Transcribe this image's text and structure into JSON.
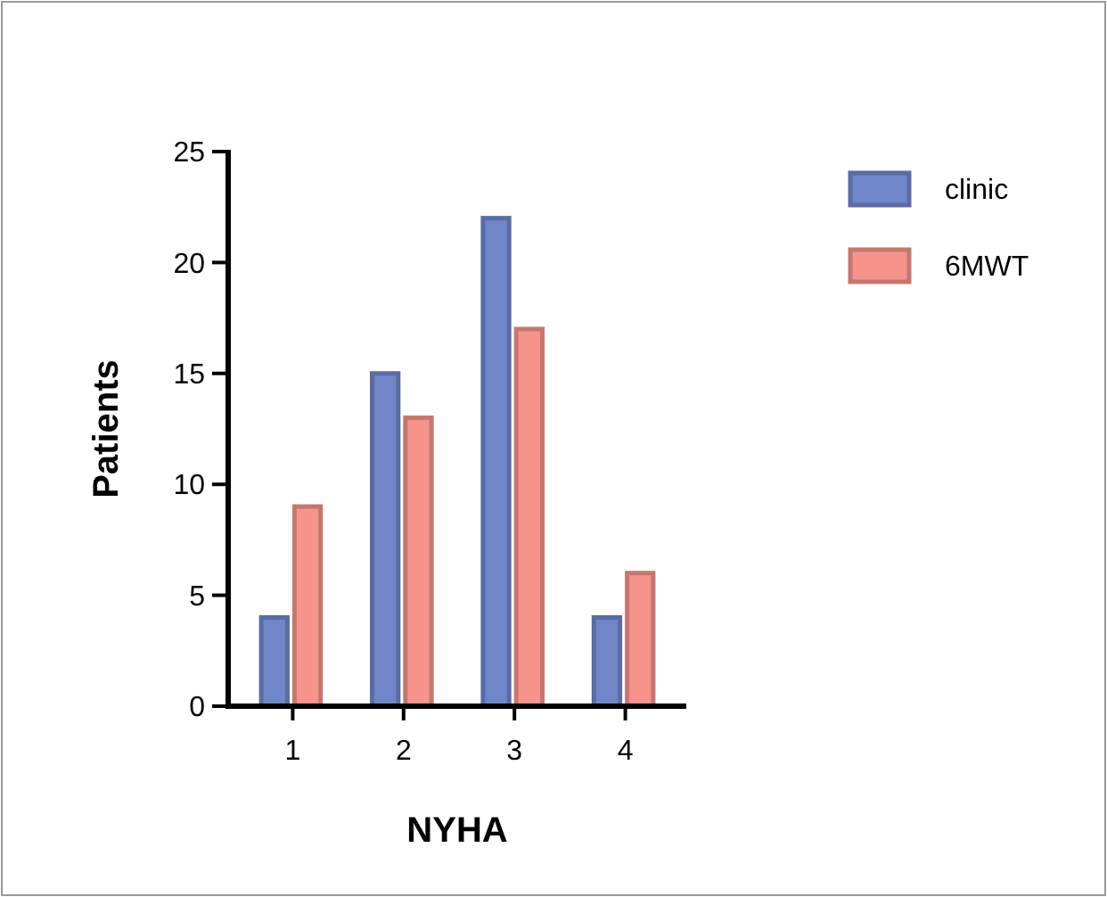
{
  "chart_data": {
    "type": "bar",
    "xlabel": "NYHA",
    "ylabel": "Patients",
    "categories": [
      "1",
      "2",
      "3",
      "4"
    ],
    "series": [
      {
        "name": "clinic",
        "color": "#6f86c8",
        "values": [
          4,
          15,
          22,
          4
        ]
      },
      {
        "name": "6MWT",
        "color": "#f4948a",
        "values": [
          9,
          13,
          17,
          6
        ]
      }
    ],
    "ylim": [
      0,
      25
    ],
    "yticks": [
      0,
      5,
      10,
      15,
      20,
      25
    ],
    "legend": "top right"
  }
}
